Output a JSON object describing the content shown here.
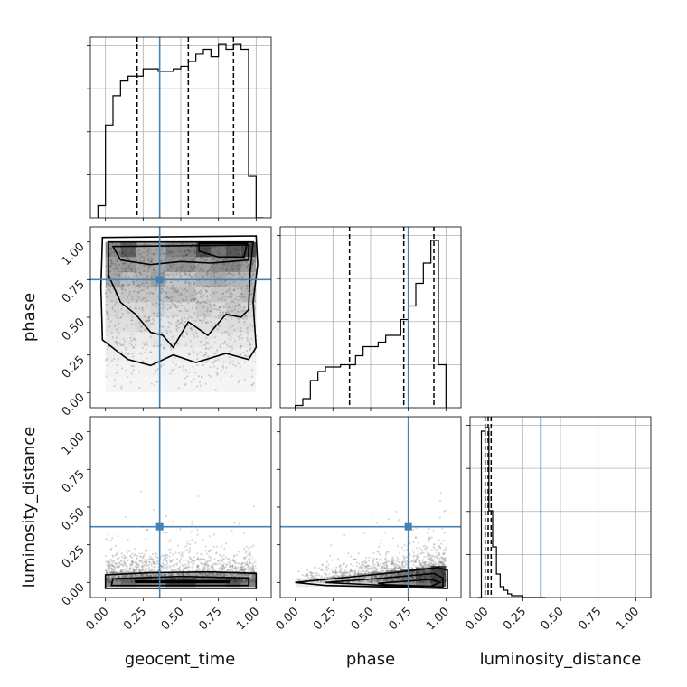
{
  "chart_data": {
    "type": "corner",
    "parameters": [
      "geocent_time",
      "phase",
      "luminosity_distance"
    ],
    "axis_labels": {
      "x": [
        "geocent_time",
        "phase",
        "luminosity_distance"
      ],
      "y": [
        "phase",
        "luminosity_distance"
      ]
    },
    "tick_labels": [
      "0.00",
      "0.25",
      "0.50",
      "0.75",
      "1.00"
    ],
    "tick_values": [
      0,
      0.25,
      0.5,
      0.75,
      1.0
    ],
    "axis_range": [
      -0.1,
      1.1
    ],
    "grid": true,
    "truth_color": "#4682b4",
    "truths": {
      "geocent_time": 0.36,
      "phase": 0.75,
      "luminosity_distance": 0.37
    },
    "quantiles": {
      "geocent_time": [
        0.21,
        0.55,
        0.85
      ],
      "phase": [
        0.36,
        0.72,
        0.92
      ],
      "luminosity_distance": [
        0.0,
        0.02,
        0.04
      ]
    },
    "histograms": {
      "geocent_time": {
        "bin_edges": [
          -0.05,
          0.0,
          0.05,
          0.1,
          0.15,
          0.2,
          0.25,
          0.3,
          0.35,
          0.4,
          0.45,
          0.5,
          0.55,
          0.6,
          0.65,
          0.7,
          0.75,
          0.8,
          0.85,
          0.9,
          0.95,
          1.0,
          1.05
        ],
        "counts": [
          0.05,
          0.38,
          0.5,
          0.56,
          0.58,
          0.58,
          0.61,
          0.61,
          0.6,
          0.6,
          0.61,
          0.62,
          0.64,
          0.67,
          0.69,
          0.66,
          0.71,
          0.69,
          0.71,
          0.69,
          0.17,
          0.0
        ]
      },
      "phase": {
        "bin_edges": [
          0.0,
          0.05,
          0.1,
          0.15,
          0.2,
          0.25,
          0.3,
          0.35,
          0.4,
          0.45,
          0.5,
          0.55,
          0.6,
          0.65,
          0.7,
          0.75,
          0.8,
          0.85,
          0.9,
          0.95,
          1.0
        ],
        "counts": [
          0.01,
          0.04,
          0.12,
          0.16,
          0.18,
          0.18,
          0.19,
          0.19,
          0.23,
          0.27,
          0.27,
          0.29,
          0.32,
          0.32,
          0.39,
          0.45,
          0.55,
          0.64,
          0.74,
          0.19
        ]
      },
      "luminosity_distance": {
        "bin_edges": [
          -0.05,
          -0.025,
          0.0,
          0.025,
          0.05,
          0.075,
          0.1,
          0.125,
          0.15,
          0.175,
          0.2,
          0.225,
          0.25,
          0.275,
          0.3,
          0.325,
          0.35,
          0.375,
          0.4
        ],
        "counts": [
          0.0,
          0.92,
          0.94,
          0.48,
          0.28,
          0.13,
          0.06,
          0.04,
          0.02,
          0.01,
          0.01,
          0.01,
          0.0,
          0.0,
          0.0,
          0.0,
          0.0,
          0.0
        ]
      }
    },
    "hist_ylim": {
      "geocent_time": [
        0.0,
        0.74
      ],
      "phase": [
        0.0,
        0.8
      ],
      "luminosity_distance": [
        0.0,
        1.0
      ]
    }
  }
}
